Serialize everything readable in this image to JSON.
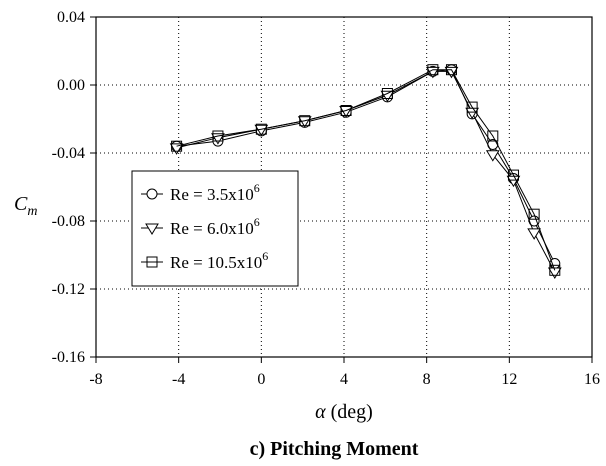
{
  "caption": "c) Pitching Moment",
  "chart_data": {
    "type": "line",
    "xlabel_symbol": "α",
    "xlabel_unit": " (deg)",
    "ylabel_main": "C",
    "ylabel_sub": "m",
    "xlim": [
      -8,
      16
    ],
    "ylim": [
      -0.16,
      0.04
    ],
    "xticks": [
      -8,
      -4,
      0,
      4,
      8,
      12,
      16
    ],
    "yticks": [
      0.04,
      0.0,
      -0.04,
      -0.08,
      -0.12,
      -0.16
    ],
    "xtick_labels": [
      "-8",
      "-4",
      "0",
      "4",
      "8",
      "12",
      "16"
    ],
    "ytick_labels": [
      "0.04",
      "0.00",
      "-0.04",
      "-0.08",
      "-0.12",
      "-0.16"
    ],
    "grid": true,
    "legend_position": "center-left",
    "series": [
      {
        "name": "Re = 3.5x10",
        "exponent": "6",
        "marker": "circle",
        "x": [
          -4.1,
          -2.1,
          0.0,
          2.1,
          4.1,
          6.1,
          8.3,
          9.2,
          10.2,
          11.2,
          12.2,
          13.2,
          14.2
        ],
        "y": [
          -0.036,
          -0.033,
          -0.027,
          -0.022,
          -0.016,
          -0.007,
          0.008,
          0.009,
          -0.017,
          -0.035,
          -0.055,
          -0.08,
          -0.105
        ]
      },
      {
        "name": "Re = 6.0x10",
        "exponent": "6",
        "marker": "triangle-down",
        "x": [
          -4.1,
          -2.1,
          0.0,
          2.1,
          4.1,
          6.1,
          8.3,
          9.2,
          10.2,
          11.2,
          12.2,
          13.2,
          14.2
        ],
        "y": [
          -0.037,
          -0.031,
          -0.026,
          -0.021,
          -0.015,
          -0.006,
          0.008,
          0.008,
          -0.016,
          -0.041,
          -0.056,
          -0.087,
          -0.11
        ]
      },
      {
        "name": "Re = 10.5x10",
        "exponent": "6",
        "marker": "square",
        "x": [
          -4.1,
          -2.1,
          0.0,
          2.1,
          4.1,
          6.1,
          8.3,
          9.2,
          10.2,
          11.2,
          12.2,
          13.2,
          14.2
        ],
        "y": [
          -0.036,
          -0.03,
          -0.026,
          -0.021,
          -0.015,
          -0.005,
          0.009,
          0.009,
          -0.013,
          -0.03,
          -0.053,
          -0.076,
          -0.109
        ]
      }
    ]
  }
}
